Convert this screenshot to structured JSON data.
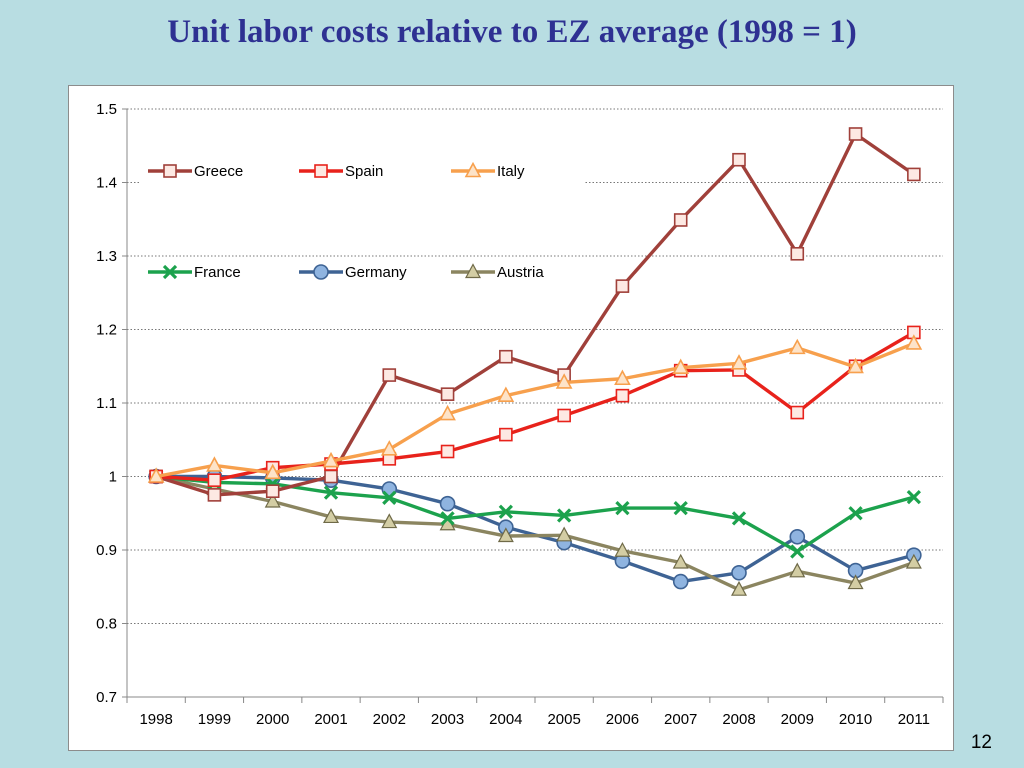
{
  "slide": {
    "title": "Unit labor costs relative to EZ average (1998 = 1)",
    "page_number": "12"
  },
  "chart_data": {
    "type": "line",
    "title": "",
    "xlabel": "",
    "ylabel": "",
    "x": [
      "1998",
      "1999",
      "2000",
      "2001",
      "2002",
      "2003",
      "2004",
      "2005",
      "2006",
      "2007",
      "2008",
      "2009",
      "2010",
      "2011"
    ],
    "ylim": [
      0.7,
      1.5
    ],
    "yticks": [
      0.7,
      0.8,
      0.9,
      1.0,
      1.1,
      1.2,
      1.3,
      1.4,
      1.5
    ],
    "ytick_labels": [
      "0.7",
      "0.8",
      "0.9",
      "1",
      "1.1",
      "1.2",
      "1.3",
      "1.4",
      "1.5"
    ],
    "grid": "horizontal dotted",
    "legend_position": "top-left, inside plot, 2 rows x 3 columns",
    "series": [
      {
        "name": "Greece",
        "color": "#a0403a",
        "marker": "square-open",
        "values": [
          1.0,
          0.975,
          0.98,
          1.0,
          1.138,
          1.112,
          1.163,
          1.138,
          1.259,
          1.349,
          1.431,
          1.303,
          1.466,
          1.411
        ]
      },
      {
        "name": "Spain",
        "color": "#e8221b",
        "marker": "square-open",
        "values": [
          1.0,
          0.995,
          1.012,
          1.017,
          1.024,
          1.034,
          1.057,
          1.083,
          1.11,
          1.144,
          1.145,
          1.087,
          1.15,
          1.196
        ]
      },
      {
        "name": "Italy",
        "color": "#f7a04d",
        "marker": "triangle-open",
        "values": [
          1.0,
          1.015,
          1.005,
          1.021,
          1.037,
          1.085,
          1.11,
          1.128,
          1.133,
          1.148,
          1.154,
          1.175,
          1.149,
          1.181
        ]
      },
      {
        "name": "France",
        "color": "#1ca24d",
        "marker": "x",
        "values": [
          1.0,
          0.992,
          0.99,
          0.978,
          0.971,
          0.943,
          0.952,
          0.947,
          0.957,
          0.957,
          0.943,
          0.898,
          0.95,
          0.972
        ]
      },
      {
        "name": "Germany",
        "color": "#3e6394",
        "marker": "circle",
        "values": [
          1.0,
          1.0,
          0.998,
          0.995,
          0.983,
          0.963,
          0.931,
          0.91,
          0.885,
          0.857,
          0.869,
          0.918,
          0.872,
          0.893
        ]
      },
      {
        "name": "Austria",
        "color": "#8b8560",
        "marker": "triangle",
        "values": [
          1.0,
          0.983,
          0.966,
          0.945,
          0.938,
          0.935,
          0.919,
          0.92,
          0.899,
          0.883,
          0.846,
          0.871,
          0.855,
          0.883
        ]
      }
    ]
  }
}
